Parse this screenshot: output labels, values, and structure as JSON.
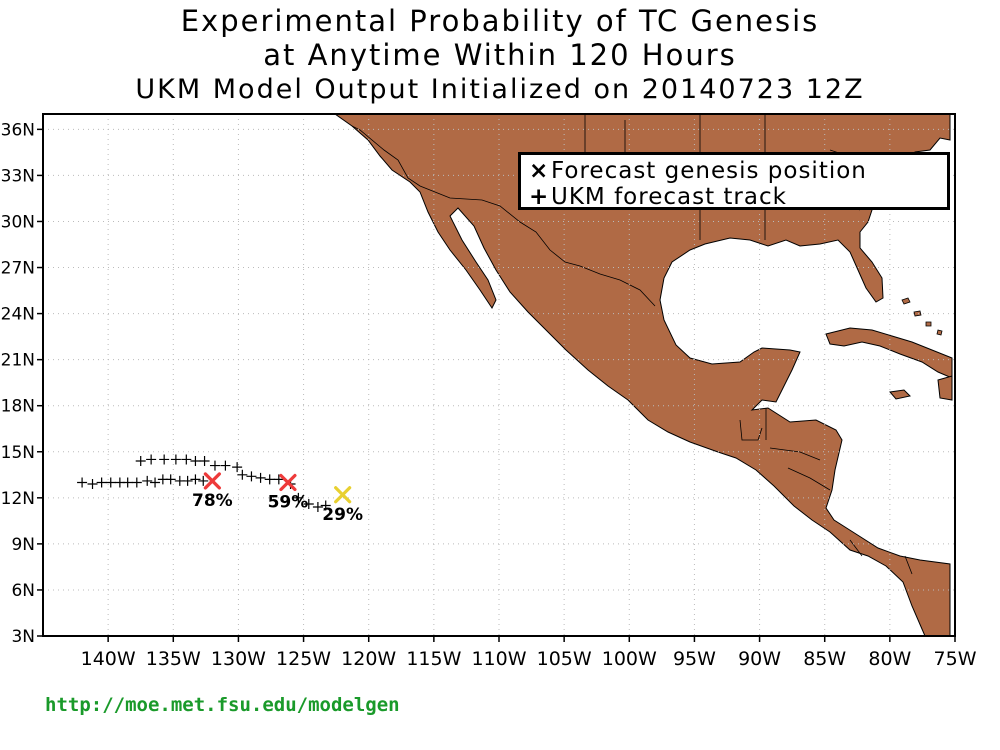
{
  "title": {
    "line1": "Experimental Probability of TC Genesis",
    "line2": "at Anytime Within 120 Hours",
    "line3": "UKM Model Output Initialized on 20140723 12Z"
  },
  "legend": {
    "genesis_symbol": "×",
    "genesis_label": "Forecast genesis position",
    "track_symbol": "+",
    "track_label": "UKM forecast track"
  },
  "footer_url": "http://moe.met.fsu.edu/modelgen",
  "chart_data": {
    "type": "scatter",
    "xlim": [
      -145,
      -75
    ],
    "ylim": [
      3,
      37
    ],
    "x_ticks": [
      {
        "v": -140,
        "label": "140W"
      },
      {
        "v": -135,
        "label": "135W"
      },
      {
        "v": -130,
        "label": "130W"
      },
      {
        "v": -125,
        "label": "125W"
      },
      {
        "v": -120,
        "label": "120W"
      },
      {
        "v": -115,
        "label": "115W"
      },
      {
        "v": -110,
        "label": "110W"
      },
      {
        "v": -105,
        "label": "105W"
      },
      {
        "v": -100,
        "label": "100W"
      },
      {
        "v": -95,
        "label": "95W"
      },
      {
        "v": -90,
        "label": "90W"
      },
      {
        "v": -85,
        "label": "85W"
      },
      {
        "v": -80,
        "label": "80W"
      },
      {
        "v": -75,
        "label": "75W"
      }
    ],
    "y_ticks": [
      {
        "v": 3,
        "label": "3N"
      },
      {
        "v": 6,
        "label": "6N"
      },
      {
        "v": 9,
        "label": "9N"
      },
      {
        "v": 12,
        "label": "12N"
      },
      {
        "v": 15,
        "label": "15N"
      },
      {
        "v": 18,
        "label": "18N"
      },
      {
        "v": 21,
        "label": "21N"
      },
      {
        "v": 24,
        "label": "24N"
      },
      {
        "v": 27,
        "label": "27N"
      },
      {
        "v": 30,
        "label": "30N"
      },
      {
        "v": 33,
        "label": "33N"
      },
      {
        "v": 36,
        "label": "36N"
      }
    ],
    "grid": true,
    "land_color": "#b06a45",
    "genesis_points": [
      {
        "lon": -132.0,
        "lat": 13.1,
        "prob": "78%",
        "color": "#ee3a3a"
      },
      {
        "lon": -126.2,
        "lat": 13.0,
        "prob": "59%",
        "color": "#ee3a3a"
      },
      {
        "lon": -122.0,
        "lat": 12.2,
        "prob": "29%",
        "color": "#e8d030"
      }
    ],
    "tracks": [
      {
        "points": [
          [
            -137.5,
            14.4
          ],
          [
            -136.7,
            14.5
          ],
          [
            -135.7,
            14.5
          ],
          [
            -134.8,
            14.5
          ],
          [
            -134.0,
            14.5
          ],
          [
            -133.3,
            14.4
          ],
          [
            -132.6,
            14.4
          ],
          [
            -131.8,
            14.1
          ],
          [
            -131.0,
            14.1
          ],
          [
            -130.1,
            14.0
          ]
        ]
      },
      {
        "points": [
          [
            -142.0,
            13.0
          ],
          [
            -141.2,
            12.9
          ],
          [
            -140.5,
            13.0
          ],
          [
            -139.8,
            13.0
          ],
          [
            -139.1,
            13.0
          ],
          [
            -138.5,
            13.0
          ],
          [
            -137.8,
            13.0
          ],
          [
            -137.0,
            13.1
          ],
          [
            -136.4,
            13.0
          ],
          [
            -135.8,
            13.2
          ],
          [
            -135.2,
            13.2
          ],
          [
            -134.5,
            13.1
          ],
          [
            -133.9,
            13.1
          ],
          [
            -133.3,
            13.2
          ],
          [
            -132.7,
            13.1
          ]
        ]
      },
      {
        "points": [
          [
            -129.7,
            13.5
          ],
          [
            -129.0,
            13.4
          ],
          [
            -128.3,
            13.3
          ],
          [
            -127.6,
            13.2
          ],
          [
            -126.9,
            13.2
          ],
          [
            -126.0,
            12.9
          ],
          [
            -125.4,
            12.0
          ],
          [
            -124.6,
            11.6
          ],
          [
            -123.9,
            11.4
          ],
          [
            -123.3,
            11.5
          ]
        ]
      }
    ]
  }
}
